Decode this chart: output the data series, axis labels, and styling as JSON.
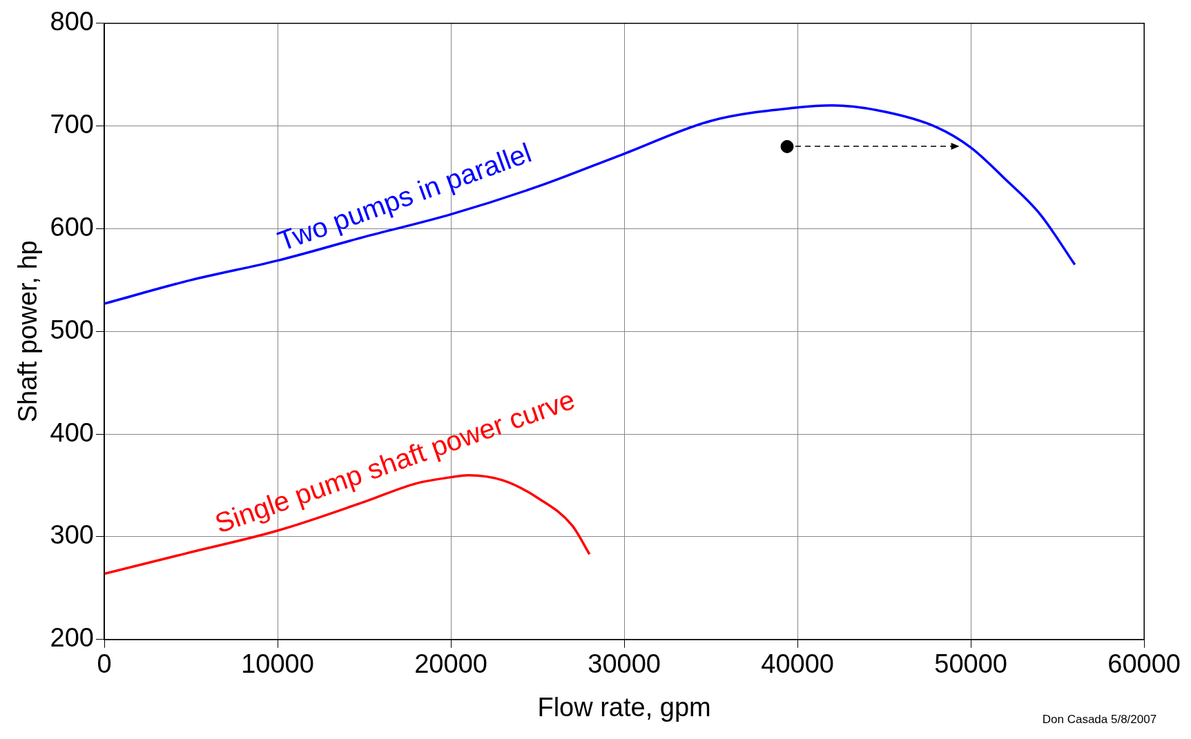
{
  "chart_data": {
    "type": "line",
    "xlabel": "Flow rate, gpm",
    "ylabel": "Shaft power, hp",
    "annotations": [
      "Don Casada 5/8/2007"
    ],
    "xlim": [
      0,
      60000
    ],
    "xticks": [
      0,
      10000,
      20000,
      30000,
      40000,
      50000,
      60000
    ],
    "ylim": [
      200,
      800
    ],
    "yticks": [
      200,
      300,
      400,
      500,
      600,
      700,
      800
    ],
    "grid": true,
    "legend": false,
    "marker": "none",
    "series": [
      {
        "name": "Two pumps in parallel",
        "color": "#0000ff",
        "x": [
          0,
          5000,
          10000,
          15000,
          20000,
          25000,
          30000,
          35000,
          40000,
          42000,
          45000,
          48000,
          50000,
          52000,
          54000,
          56000
        ],
        "values": [
          527,
          550,
          569,
          592,
          614,
          641,
          673,
          705,
          718,
          720,
          714,
          699,
          679,
          648,
          614,
          565
        ]
      },
      {
        "name": "Single pump shaft power curve",
        "color": "#ff0000",
        "x": [
          0,
          5000,
          10000,
          15000,
          18000,
          20000,
          21000,
          23000,
          25000,
          27000,
          28000
        ],
        "values": [
          264,
          285,
          306,
          334,
          352,
          358,
          360,
          355,
          338,
          311,
          283
        ]
      },
      {
        "type": "scatter",
        "color": "#000000",
        "x": [
          39400
        ],
        "values": [
          680
        ],
        "marker": "circle"
      }
    ]
  }
}
